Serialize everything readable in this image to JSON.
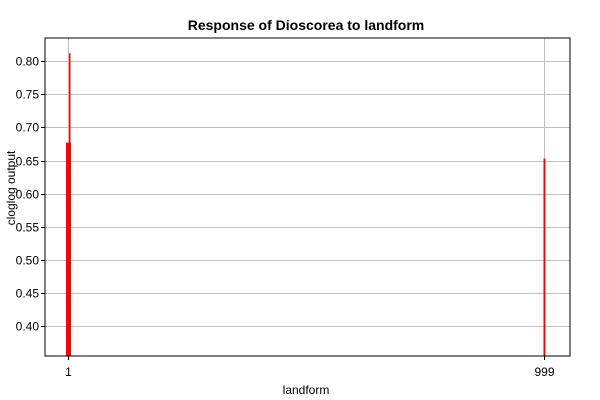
{
  "chart_data": {
    "type": "bar",
    "title": "Response of Dioscorea to landform",
    "xlabel": "landform",
    "ylabel": "cloglog output",
    "categories": [
      "1",
      "999"
    ],
    "series": [
      {
        "values": [
          0.677,
          0.653
        ]
      }
    ],
    "extra_marks": [
      {
        "category": "1",
        "value": 0.812
      }
    ],
    "ylim": [
      0.355,
      0.835
    ],
    "yticks": [
      "0.40",
      "0.45",
      "0.50",
      "0.55",
      "0.60",
      "0.65",
      "0.70",
      "0.75",
      "0.80"
    ],
    "grid": true,
    "colors": {
      "bar": "#ff0000",
      "grid": "#c0c0c0",
      "axis": "#000000"
    }
  }
}
